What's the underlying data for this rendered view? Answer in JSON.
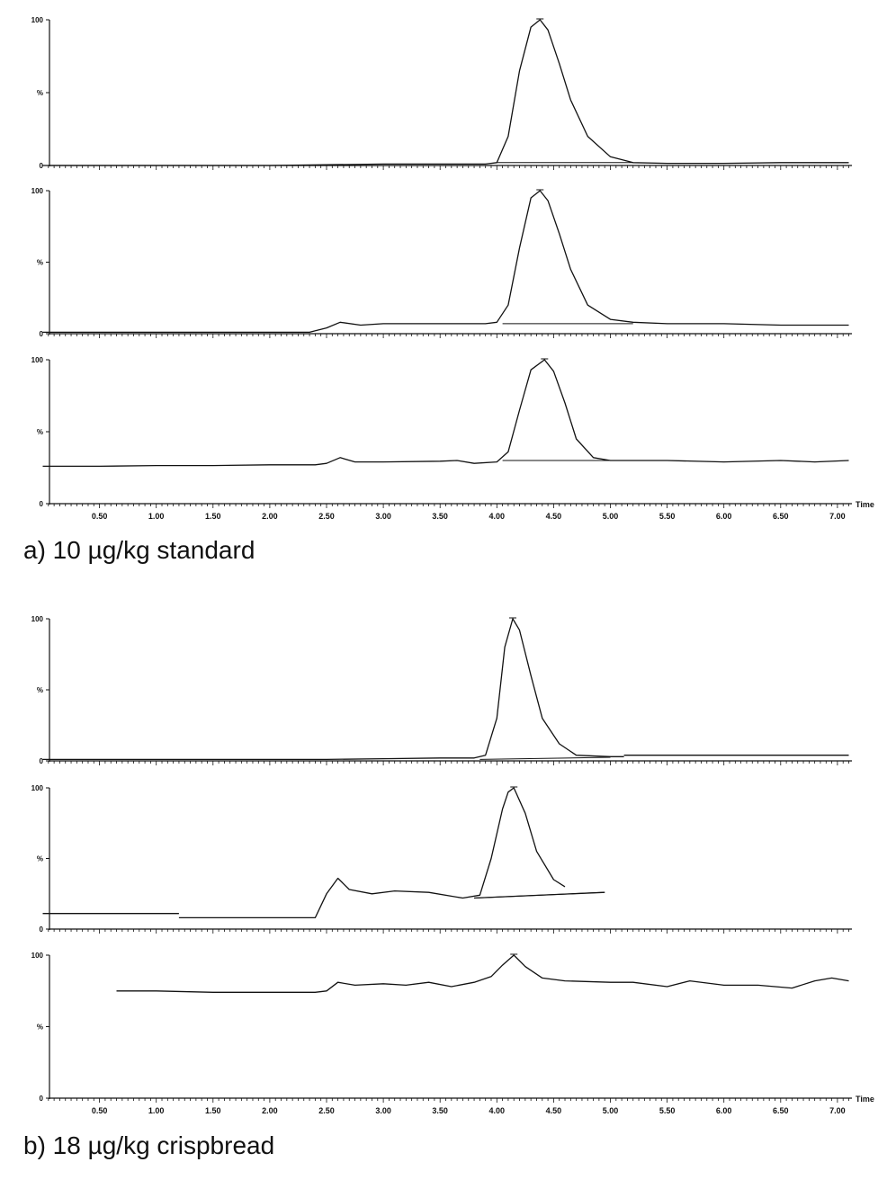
{
  "figure_labels": {
    "a": "a) 10 µg/kg standard",
    "b": "b) 18 µg/kg crispbread"
  },
  "y_tick_labels": [
    "0",
    "%",
    "100"
  ],
  "x_axis_name": "Time",
  "chart_data": [
    {
      "type": "line",
      "panel_group": "a",
      "x_ticks": [
        "0.50",
        "1.00",
        "1.50",
        "2.00",
        "2.50",
        "3.00",
        "3.50",
        "4.00",
        "4.50",
        "5.00",
        "5.50",
        "6.00",
        "6.50",
        "7.00"
      ],
      "xlim": [
        0.0,
        7.15
      ],
      "ylim": [
        0,
        100
      ],
      "show_x_labels": false,
      "series": [
        {
          "x": [
            0.0,
            0.5,
            1.0,
            1.5,
            2.0,
            2.5,
            3.0,
            3.5,
            3.9,
            4.0,
            4.1,
            4.2,
            4.3,
            4.38,
            4.45,
            4.55,
            4.65,
            4.8,
            5.0,
            5.2,
            5.5,
            6.0,
            6.5,
            7.1
          ],
          "y": [
            0,
            0,
            0,
            0,
            0,
            0.5,
            1,
            1,
            1,
            2,
            20,
            65,
            95,
            100,
            93,
            70,
            45,
            20,
            6,
            2,
            1.5,
            1.5,
            2,
            2
          ]
        }
      ],
      "baseline": {
        "x": [
          4.0,
          5.2
        ],
        "y": [
          2,
          2
        ]
      }
    },
    {
      "type": "line",
      "panel_group": "a",
      "x_ticks": [
        "0.50",
        "1.00",
        "1.50",
        "2.00",
        "2.50",
        "3.00",
        "3.50",
        "4.00",
        "4.50",
        "5.00",
        "5.50",
        "6.00",
        "6.50",
        "7.00"
      ],
      "xlim": [
        0.0,
        7.15
      ],
      "ylim": [
        0,
        100
      ],
      "show_x_labels": false,
      "series": [
        {
          "x": [
            0.0,
            0.5,
            1.0,
            1.5,
            2.0,
            2.35,
            2.5,
            2.62,
            2.8,
            3.0,
            3.5,
            3.9,
            4.0,
            4.1,
            4.2,
            4.3,
            4.38,
            4.45,
            4.55,
            4.65,
            4.8,
            5.0,
            5.2,
            5.5,
            6.0,
            6.5,
            7.1
          ],
          "y": [
            1,
            1,
            1,
            1,
            1,
            1,
            4,
            8,
            6,
            7,
            7,
            7,
            8,
            20,
            60,
            95,
            100,
            93,
            70,
            45,
            20,
            10,
            8,
            7,
            7,
            6,
            6
          ]
        }
      ],
      "baseline": {
        "x": [
          4.05,
          5.2
        ],
        "y": [
          7,
          7
        ]
      }
    },
    {
      "type": "line",
      "panel_group": "a",
      "x_ticks": [
        "0.50",
        "1.00",
        "1.50",
        "2.00",
        "2.50",
        "3.00",
        "3.50",
        "4.00",
        "4.50",
        "5.00",
        "5.50",
        "6.00",
        "6.50",
        "7.00"
      ],
      "xlim": [
        0.0,
        7.15
      ],
      "ylim": [
        0,
        100
      ],
      "show_x_labels": true,
      "series": [
        {
          "x": [
            0.0,
            0.5,
            1.0,
            1.5,
            2.0,
            2.4,
            2.5,
            2.62,
            2.75,
            3.0,
            3.5,
            3.65,
            3.8,
            4.0,
            4.1,
            4.2,
            4.3,
            4.42,
            4.5,
            4.6,
            4.7,
            4.85,
            5.0,
            5.5,
            6.0,
            6.5,
            6.8,
            7.1
          ],
          "y": [
            26,
            26,
            26.5,
            26.5,
            27,
            27,
            28,
            32,
            29,
            29,
            29.5,
            30,
            28,
            29,
            36,
            65,
            93,
            100,
            92,
            70,
            45,
            32,
            30,
            30,
            29,
            30,
            29,
            30
          ]
        }
      ],
      "baseline": {
        "x": [
          4.05,
          5.1
        ],
        "y": [
          30,
          30
        ]
      }
    },
    {
      "type": "line",
      "panel_group": "b",
      "x_ticks": [
        "0.50",
        "1.00",
        "1.50",
        "2.00",
        "2.50",
        "3.00",
        "3.50",
        "4.00",
        "4.50",
        "5.00",
        "5.50",
        "6.00",
        "6.50",
        "7.00"
      ],
      "xlim": [
        0.0,
        7.15
      ],
      "ylim": [
        0,
        100
      ],
      "show_x_labels": false,
      "series": [
        {
          "x": [
            0.0,
            0.5,
            1.0,
            1.5,
            2.0,
            2.5,
            3.0,
            3.5,
            3.8,
            3.9,
            4.0,
            4.07,
            4.14,
            4.2,
            4.3,
            4.4,
            4.55,
            4.7,
            5.0,
            5.12
          ],
          "y": [
            1,
            1,
            1,
            1,
            1,
            1,
            1.5,
            2,
            2,
            4,
            30,
            80,
            100,
            92,
            60,
            30,
            12,
            4,
            3,
            3
          ]
        },
        {
          "x": [
            5.12,
            7.1
          ],
          "y": [
            4,
            4
          ]
        }
      ],
      "baseline": {
        "x": [
          3.85,
          5.0
        ],
        "y": [
          1,
          2.5
        ]
      }
    },
    {
      "type": "line",
      "panel_group": "b",
      "x_ticks": [
        "0.50",
        "1.00",
        "1.50",
        "2.00",
        "2.50",
        "3.00",
        "3.50",
        "4.00",
        "4.50",
        "5.00",
        "5.50",
        "6.00",
        "6.50",
        "7.00"
      ],
      "xlim": [
        0.0,
        7.15
      ],
      "ylim": [
        0,
        100
      ],
      "show_x_labels": false,
      "series": [
        {
          "x": [
            0.0,
            1.2
          ],
          "y": [
            11,
            11
          ]
        },
        {
          "x": [
            1.2,
            1.8,
            2.4,
            2.5,
            2.6,
            2.7,
            2.9,
            3.1,
            3.4,
            3.7,
            3.85,
            3.95,
            4.05,
            4.1,
            4.15,
            4.25,
            4.35,
            4.5,
            4.6
          ],
          "y": [
            8,
            8,
            8,
            25,
            36,
            28,
            25,
            27,
            26,
            22,
            24,
            50,
            85,
            97,
            100,
            82,
            55,
            35,
            30
          ]
        },
        {
          "x": [
            3.8,
            4.95
          ],
          "y": [
            22,
            26
          ]
        }
      ],
      "baseline": {
        "x": [
          3.8,
          4.95
        ],
        "y": [
          22,
          26
        ]
      }
    },
    {
      "type": "line",
      "panel_group": "b",
      "x_ticks": [
        "0.50",
        "1.00",
        "1.50",
        "2.00",
        "2.50",
        "3.00",
        "3.50",
        "4.00",
        "4.50",
        "5.00",
        "5.50",
        "6.00",
        "6.50",
        "7.00"
      ],
      "xlim": [
        0.0,
        7.15
      ],
      "ylim": [
        0,
        100
      ],
      "show_x_labels": true,
      "series": [
        {
          "x": [
            0.65,
            1.0,
            1.5,
            2.0,
            2.4,
            2.5,
            2.6,
            2.75,
            3.0,
            3.2,
            3.4,
            3.6,
            3.8,
            3.95,
            4.05,
            4.15,
            4.25,
            4.4,
            4.6,
            5.0,
            5.2,
            5.5,
            5.7,
            6.0,
            6.3,
            6.6,
            6.8,
            6.95,
            7.1
          ],
          "y": [
            75,
            75,
            74,
            74,
            74,
            75,
            81,
            79,
            80,
            79,
            81,
            78,
            81,
            85,
            93,
            100,
            92,
            84,
            82,
            81,
            81,
            78,
            82,
            79,
            79,
            77,
            82,
            84,
            82
          ]
        }
      ],
      "baseline": null
    }
  ]
}
